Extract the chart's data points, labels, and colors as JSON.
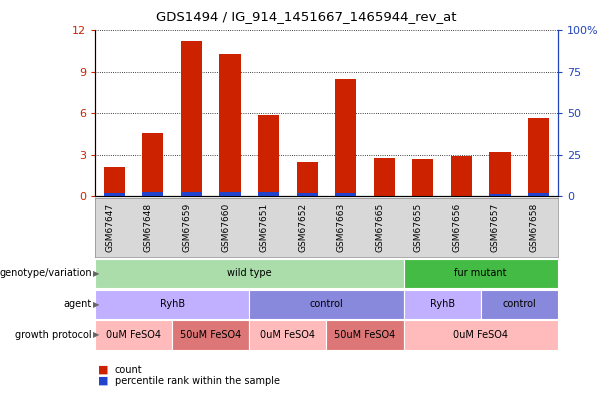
{
  "title": "GDS1494 / IG_914_1451667_1465944_rev_at",
  "samples": [
    "GSM67647",
    "GSM67648",
    "GSM67659",
    "GSM67660",
    "GSM67651",
    "GSM67652",
    "GSM67663",
    "GSM67665",
    "GSM67655",
    "GSM67656",
    "GSM67657",
    "GSM67658"
  ],
  "red_values": [
    2.1,
    4.6,
    11.2,
    10.3,
    5.9,
    2.5,
    8.5,
    2.8,
    2.7,
    2.9,
    3.2,
    5.7
  ],
  "blue_pct_values": [
    2.0,
    2.5,
    2.8,
    2.5,
    2.5,
    2.0,
    2.0,
    0.0,
    0.0,
    0.0,
    1.5,
    1.8
  ],
  "ylim_left": [
    0,
    12
  ],
  "yticks_left": [
    0,
    3,
    6,
    9,
    12
  ],
  "ylim_right": [
    0,
    100
  ],
  "yticks_right": [
    0,
    25,
    50,
    75,
    100
  ],
  "bar_color_red": "#cc2200",
  "bar_color_blue": "#2244cc",
  "bar_width": 0.55,
  "axis_color_left": "#cc2200",
  "axis_color_right": "#2244bb",
  "sample_bg_color": "#d8d8d8",
  "annotation_rows": [
    {
      "label": "genotype/variation",
      "segments": [
        {
          "text": "wild type",
          "start": 0,
          "end": 7,
          "color": "#aaddaa"
        },
        {
          "text": "fur mutant",
          "start": 8,
          "end": 11,
          "color": "#44bb44"
        }
      ]
    },
    {
      "label": "agent",
      "segments": [
        {
          "text": "RyhB",
          "start": 0,
          "end": 3,
          "color": "#c0b0ff"
        },
        {
          "text": "control",
          "start": 4,
          "end": 7,
          "color": "#8888dd"
        },
        {
          "text": "RyhB",
          "start": 8,
          "end": 9,
          "color": "#c0b0ff"
        },
        {
          "text": "control",
          "start": 10,
          "end": 11,
          "color": "#8888dd"
        }
      ]
    },
    {
      "label": "growth protocol",
      "segments": [
        {
          "text": "0uM FeSO4",
          "start": 0,
          "end": 1,
          "color": "#ffbbbb"
        },
        {
          "text": "50uM FeSO4",
          "start": 2,
          "end": 3,
          "color": "#dd7777"
        },
        {
          "text": "0uM FeSO4",
          "start": 4,
          "end": 5,
          "color": "#ffbbbb"
        },
        {
          "text": "50uM FeSO4",
          "start": 6,
          "end": 7,
          "color": "#dd7777"
        },
        {
          "text": "0uM FeSO4",
          "start": 8,
          "end": 11,
          "color": "#ffbbbb"
        }
      ]
    }
  ],
  "legend_items": [
    {
      "label": "count",
      "color": "#cc2200"
    },
    {
      "label": "percentile rank within the sample",
      "color": "#2244cc"
    }
  ]
}
